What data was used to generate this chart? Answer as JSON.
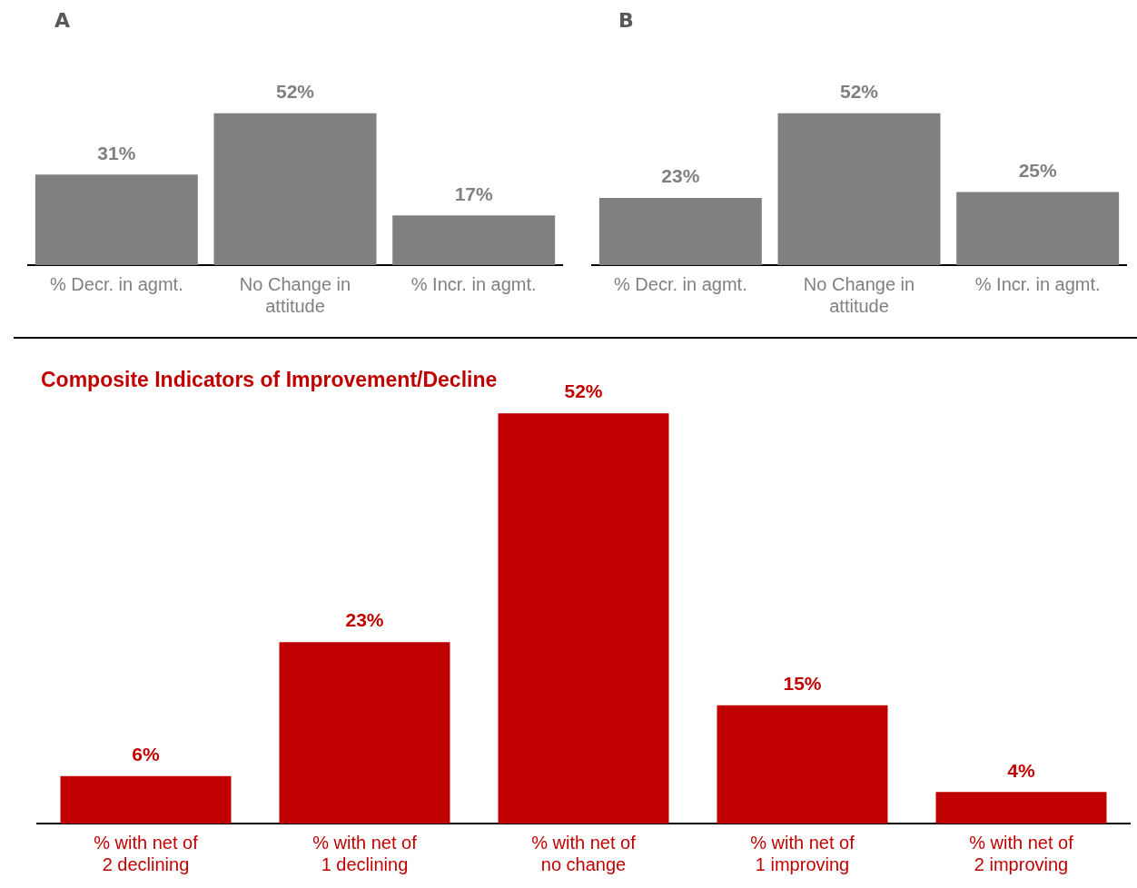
{
  "chart_data": [
    {
      "type": "bar",
      "title": "A",
      "categories": [
        "% Decr. in agmt.",
        "No Change in attitude",
        "% Incr. in agmt."
      ],
      "values": [
        31,
        52,
        17
      ],
      "value_labels": [
        "31%",
        "52%",
        "17%"
      ],
      "color": "#808080",
      "grid": false
    },
    {
      "type": "bar",
      "title": "B",
      "categories": [
        "% Decr. in agmt.",
        "No Change in attitude",
        "% Incr. in agmt."
      ],
      "values": [
        23,
        52,
        25
      ],
      "value_labels": [
        "23%",
        "52%",
        "25%"
      ],
      "color": "#808080",
      "grid": false
    },
    {
      "type": "bar",
      "title": "Composite Indicators of Improvement/Decline",
      "categories": [
        "% with net of 2 declining",
        "% with net of 1 declining",
        "% with net of no change",
        "% with net of 1 improving",
        "% with net of 2 improving"
      ],
      "values": [
        6,
        23,
        52,
        15,
        4
      ],
      "value_labels": [
        "6%",
        "23%",
        "52%",
        "15%",
        "4%"
      ],
      "color": "#c00000",
      "grid": false
    }
  ]
}
